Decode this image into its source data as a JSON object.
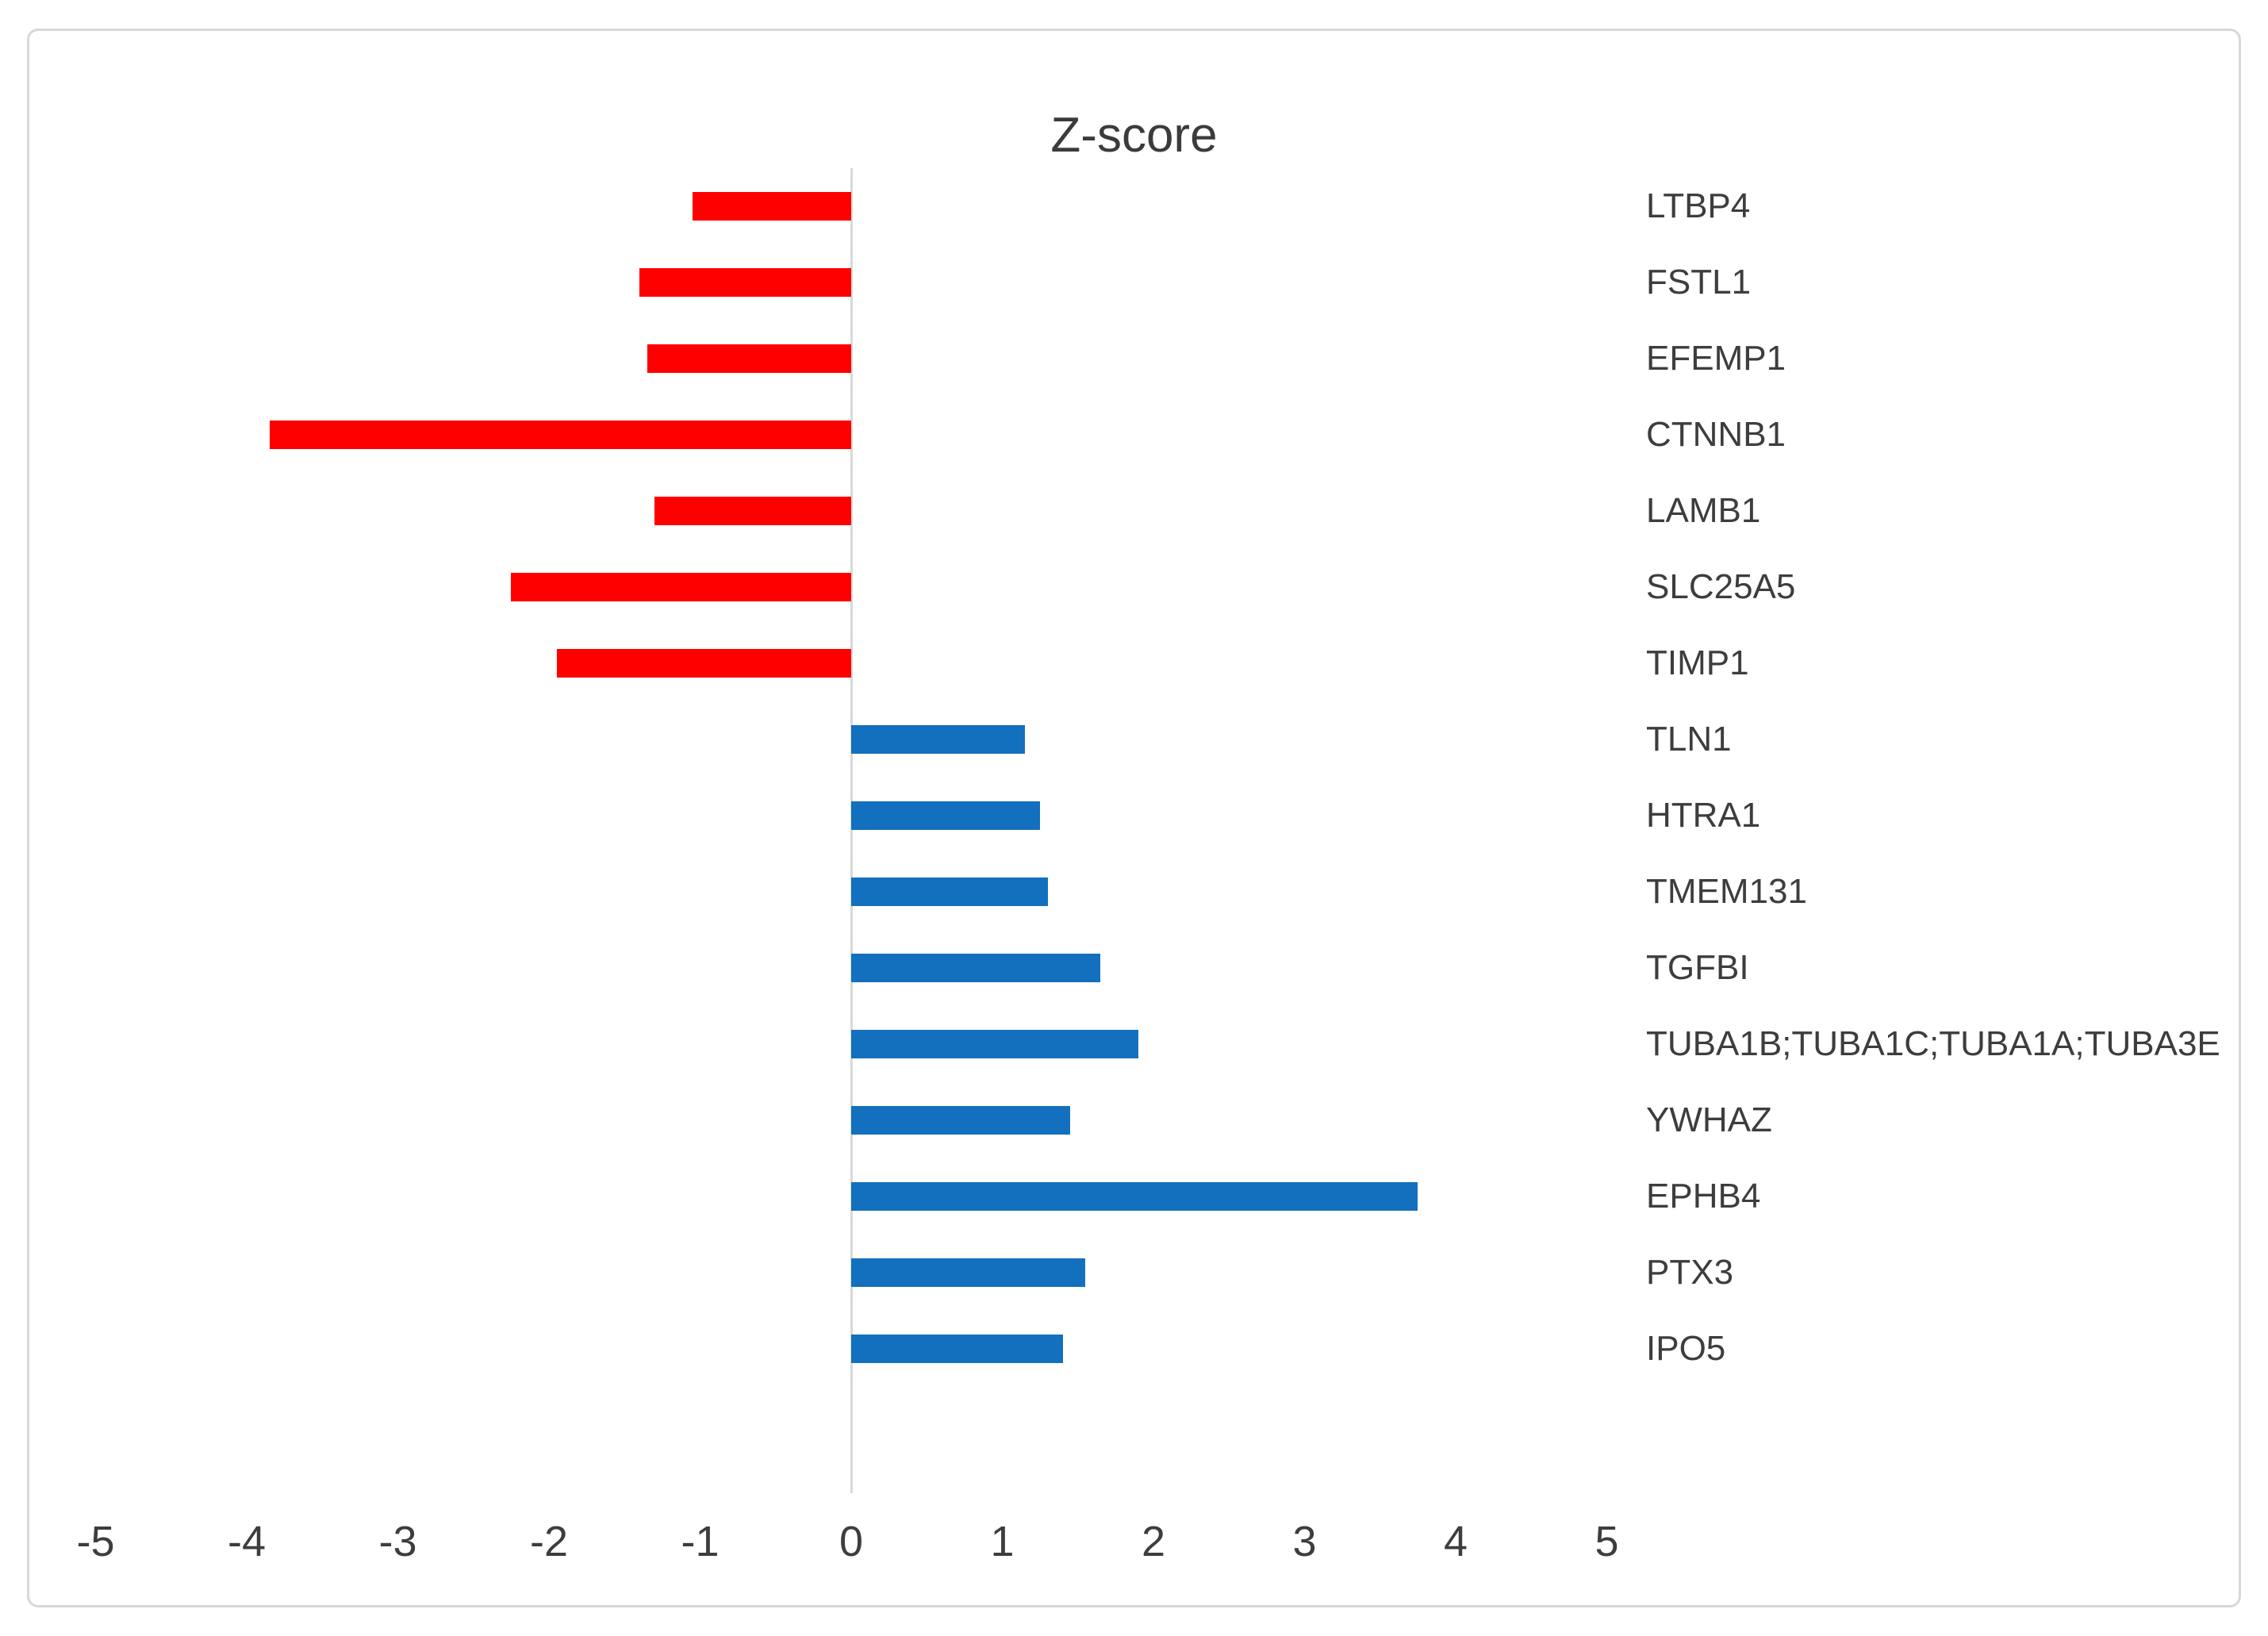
{
  "chart_data": {
    "type": "bar",
    "orientation": "horizontal",
    "title": "Z-score",
    "categories": [
      "LTBP4",
      "FSTL1",
      "EFEMP1",
      "CTNNB1",
      "LAMB1",
      "SLC25A5",
      "TIMP1",
      "TLN1",
      "HTRA1",
      "TMEM131",
      "TGFBI",
      "TUBA1B;TUBA1C;TUBA1A;TUBA3E",
      "YWHAZ",
      "EPHB4",
      "PTX3",
      "IPO5"
    ],
    "values": [
      -1.05,
      -1.4,
      -1.35,
      -3.85,
      -1.3,
      -2.25,
      -1.95,
      1.15,
      1.25,
      1.3,
      1.65,
      1.9,
      1.45,
      3.75,
      1.55,
      1.4
    ],
    "xlabel": "",
    "ylabel": "",
    "xlim": [
      -5,
      5
    ],
    "x_ticks": [
      -5,
      -4,
      -3,
      -2,
      -1,
      0,
      1,
      2,
      3,
      4,
      5
    ],
    "grid": "off",
    "legend": "none",
    "negative_color": "#FF0000",
    "positive_color": "#1370BE",
    "axis_line_color": "#D9D9D9",
    "text_color": "#3D3D3D",
    "border_color": "#D8D8D8"
  }
}
